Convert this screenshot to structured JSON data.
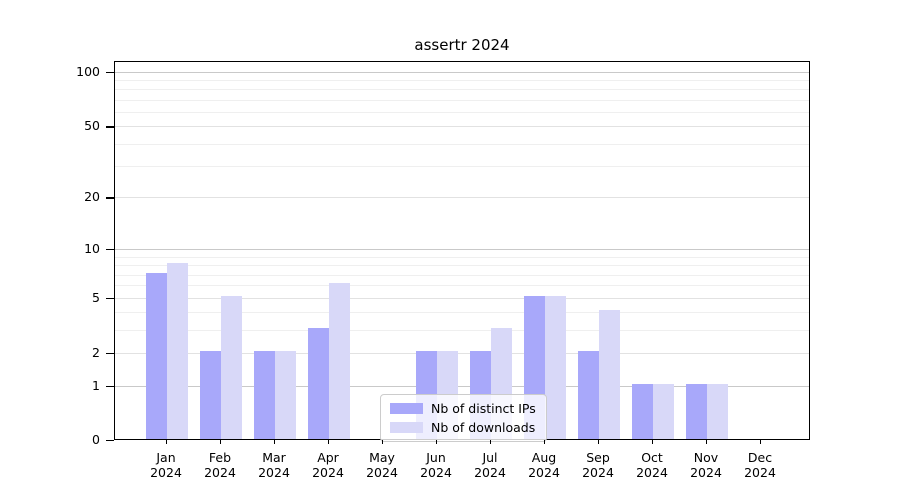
{
  "chart_data": {
    "type": "bar",
    "title": "assertr 2024",
    "x_labels": [
      {
        "month": "Jan",
        "year": "2024"
      },
      {
        "month": "Feb",
        "year": "2024"
      },
      {
        "month": "Mar",
        "year": "2024"
      },
      {
        "month": "Apr",
        "year": "2024"
      },
      {
        "month": "May",
        "year": "2024"
      },
      {
        "month": "Jun",
        "year": "2024"
      },
      {
        "month": "Jul",
        "year": "2024"
      },
      {
        "month": "Aug",
        "year": "2024"
      },
      {
        "month": "Sep",
        "year": "2024"
      },
      {
        "month": "Oct",
        "year": "2024"
      },
      {
        "month": "Nov",
        "year": "2024"
      },
      {
        "month": "Dec",
        "year": "2024"
      }
    ],
    "series": [
      {
        "name": "Nb of distinct IPs",
        "color": "#a8a8fa",
        "values": [
          7,
          2,
          2,
          3,
          0,
          2,
          2,
          5,
          2,
          1,
          1,
          0
        ]
      },
      {
        "name": "Nb of downloads",
        "color": "#d8d8f8",
        "values": [
          8,
          5,
          2,
          6,
          0,
          2,
          3,
          5,
          4,
          1,
          1,
          0
        ]
      }
    ],
    "yscale": "log1p",
    "ylim": [
      0,
      114
    ],
    "y_ticks": [
      0,
      1,
      2,
      5,
      10,
      20,
      50,
      100
    ],
    "grid_major": [
      1,
      10,
      100
    ],
    "grid_mid": [
      2,
      5,
      20,
      50
    ],
    "grid_minor": [
      3,
      4,
      6,
      7,
      8,
      9,
      30,
      40,
      60,
      70,
      80,
      90
    ],
    "grid_on": true,
    "legend_position": "lower center",
    "colors": {
      "axis": "#000000",
      "grid_major": "#c9c9c9",
      "grid_mid": "#e2e2e2",
      "grid_minor": "#efefef",
      "legend_border": "#cccccc"
    }
  }
}
